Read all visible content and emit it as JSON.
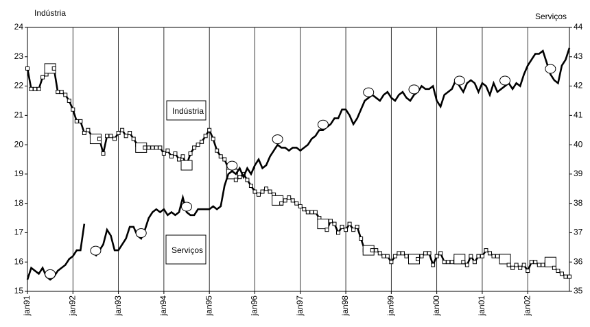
{
  "chart_data": {
    "type": "line",
    "y_label": "Indústria",
    "y2_label": "Serviços",
    "annotations": [
      "Indústria",
      "Serviços"
    ],
    "categories": [
      "jan91",
      null,
      null,
      null,
      null,
      null,
      null,
      null,
      null,
      null,
      null,
      null,
      "jan92",
      null,
      null,
      null,
      null,
      null,
      null,
      null,
      null,
      null,
      null,
      null,
      "jan93",
      null,
      null,
      null,
      null,
      null,
      null,
      null,
      null,
      null,
      null,
      null,
      "jan94",
      null,
      null,
      null,
      null,
      null,
      null,
      null,
      null,
      null,
      null,
      null,
      "jan95",
      null,
      null,
      null,
      null,
      null,
      null,
      null,
      null,
      null,
      null,
      null,
      "jan96",
      null,
      null,
      null,
      null,
      null,
      null,
      null,
      null,
      null,
      null,
      null,
      "jan97",
      null,
      null,
      null,
      null,
      null,
      null,
      null,
      null,
      null,
      null,
      null,
      "jan98",
      null,
      null,
      null,
      null,
      null,
      null,
      null,
      null,
      null,
      null,
      null,
      "jan99",
      null,
      null,
      null,
      null,
      null,
      null,
      null,
      null,
      null,
      null,
      null,
      "jan00",
      null,
      null,
      null,
      null,
      null,
      null,
      null,
      null,
      null,
      null,
      null,
      "jan01",
      null,
      null,
      null,
      null,
      null,
      null,
      null,
      null,
      null,
      null,
      null,
      "jan02",
      null,
      null,
      null,
      null,
      null,
      null,
      null,
      null,
      null,
      null,
      null
    ],
    "series": [
      {
        "name": "Indústria",
        "color": "#000000",
        "marker": "square",
        "values": [
          22.6,
          21.9,
          21.9,
          21.9,
          22.3,
          22.4,
          22.6,
          22.6,
          21.8,
          21.8,
          21.7,
          21.5,
          21.2,
          20.8,
          20.8,
          20.4,
          20.5,
          20.3,
          20.2,
          20.2,
          19.7,
          20.3,
          20.3,
          20.2,
          20.4,
          20.5,
          20.3,
          20.4,
          20.2,
          20.0,
          19.9,
          19.9,
          19.9,
          19.9,
          19.9,
          19.9,
          19.7,
          19.8,
          19.6,
          19.7,
          19.5,
          19.6,
          19.3,
          19.7,
          19.9,
          20.0,
          20.1,
          20.3,
          20.5,
          20.2,
          19.8,
          19.6,
          19.5,
          19.2,
          19.0,
          18.8,
          18.9,
          19.0,
          18.8,
          18.6,
          18.4,
          18.3,
          18.4,
          18.5,
          18.4,
          18.3,
          18.1,
          18.0,
          18.1,
          18.2,
          18.1,
          18.0,
          17.9,
          17.8,
          17.7,
          17.7,
          17.7,
          17.5,
          17.3,
          17.1,
          17.4,
          17.3,
          17.0,
          17.2,
          17.1,
          17.3,
          17.1,
          17.2,
          16.8,
          16.4,
          16.4,
          16.4,
          16.4,
          16.3,
          16.2,
          16.2,
          16.0,
          16.2,
          16.3,
          16.3,
          16.2,
          16.2,
          16.1,
          16.1,
          16.2,
          16.3,
          16.3,
          15.9,
          16.2,
          16.3,
          16.0,
          16.0,
          16.0,
          16.1,
          16.1,
          16.0,
          15.9,
          16.2,
          16.0,
          16.2,
          16.2,
          16.4,
          16.3,
          16.2,
          16.2,
          16.1,
          16.1,
          15.9,
          15.8,
          15.9,
          15.8,
          15.9,
          15.7,
          16.0,
          16.0,
          15.9,
          15.9,
          16.0,
          16.0,
          15.8,
          15.7,
          15.6,
          15.5,
          15.5
        ]
      },
      {
        "name": "Serviços",
        "color": "#000000",
        "marker": "circle",
        "axis": "y2",
        "values": [
          35.4,
          35.8,
          35.7,
          35.6,
          35.8,
          35.5,
          35.4,
          35.5,
          35.7,
          35.8,
          35.9,
          36.1,
          36.2,
          36.4,
          36.4,
          37.3,
          null,
          null,
          36.2,
          36.4,
          36.6,
          37.1,
          36.9,
          36.4,
          36.4,
          36.6,
          36.8,
          37.2,
          37.2,
          36.9,
          36.8,
          37.1,
          37.5,
          37.7,
          37.8,
          37.7,
          37.8,
          37.6,
          37.7,
          37.6,
          37.7,
          38.2,
          37.7,
          37.6,
          37.6,
          37.8,
          37.8,
          37.8,
          37.8,
          37.9,
          37.8,
          37.9,
          38.6,
          39.0,
          39.1,
          39.0,
          39.2,
          38.9,
          39.2,
          39.0,
          39.3,
          39.5,
          39.2,
          39.3,
          39.6,
          39.8,
          40.0,
          39.9,
          39.9,
          39.8,
          39.9,
          39.9,
          39.8,
          39.9,
          40.0,
          40.2,
          40.3,
          40.5,
          40.5,
          40.6,
          40.7,
          40.9,
          40.9,
          41.2,
          41.2,
          41.0,
          40.7,
          40.9,
          41.2,
          41.5,
          41.6,
          41.7,
          41.6,
          41.5,
          41.7,
          41.8,
          41.6,
          41.5,
          41.7,
          41.8,
          41.6,
          41.5,
          41.7,
          41.8,
          42.0,
          41.9,
          41.9,
          42.0,
          41.5,
          41.3,
          41.7,
          41.8,
          41.9,
          42.2,
          42.0,
          41.8,
          42.1,
          42.2,
          42.1,
          41.8,
          42.1,
          42.0,
          41.7,
          42.1,
          41.8,
          41.9,
          42.0,
          42.1,
          41.9,
          42.1,
          42.0,
          42.4,
          42.7,
          42.9,
          43.1,
          43.1,
          43.2,
          42.8,
          42.4,
          42.2,
          42.1,
          42.7,
          42.9,
          43.3
        ]
      }
    ],
    "ylim": [
      15,
      24
    ],
    "yticks": [
      15,
      16,
      17,
      18,
      19,
      20,
      21,
      22,
      23,
      24
    ],
    "y2lim": [
      35,
      44
    ],
    "y2ticks": [
      35,
      36,
      37,
      38,
      39,
      40,
      41,
      42,
      43,
      44
    ],
    "grid": "x"
  }
}
